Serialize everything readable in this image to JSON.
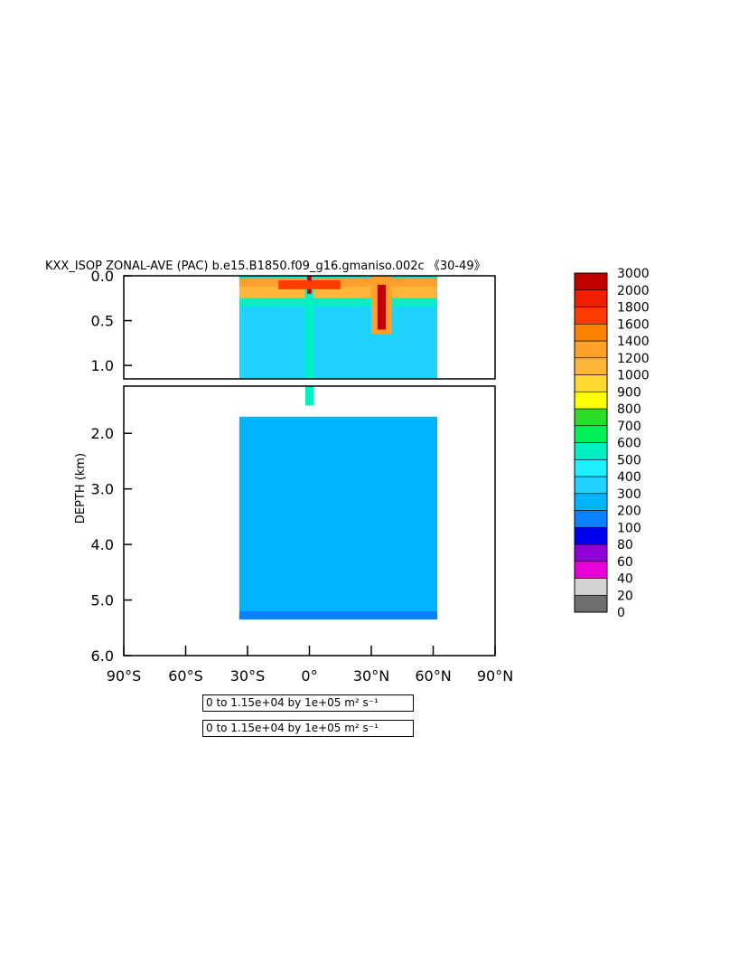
{
  "chart_data": {
    "type": "heatmap",
    "title": "KXX_ISOP ZONAL-AVE (PAC) b.e15.B1850.f09_g16.gmaniso.002c 《30-49》",
    "ylabel": "DEPTH (km)",
    "xlabel": "",
    "x_ticks": [
      "90°S",
      "60°S",
      "30°S",
      "0°",
      "30°N",
      "60°N",
      "90°N"
    ],
    "x_tick_values": [
      -90,
      -60,
      -30,
      0,
      30,
      60,
      90
    ],
    "xlim": [
      -90,
      90
    ],
    "upper_panel": {
      "ylim": [
        0.0,
        1.15
      ],
      "y_ticks": [
        "0.0",
        "0.5",
        "1.0"
      ],
      "y_tick_values": [
        0.0,
        0.5,
        1.0
      ]
    },
    "lower_panel": {
      "ylim": [
        1.15,
        6.0
      ],
      "y_ticks": [
        "2.0",
        "3.0",
        "4.0",
        "5.0",
        "6.0"
      ],
      "y_tick_values": [
        2.0,
        3.0,
        4.0,
        5.0,
        6.0
      ]
    },
    "domain": {
      "lat_range": [
        -34,
        62
      ],
      "max_depth_km": 5.35
    },
    "colorbar": {
      "levels": [
        "0",
        "20",
        "40",
        "60",
        "80",
        "100",
        "200",
        "300",
        "400",
        "500",
        "600",
        "700",
        "800",
        "900",
        "1000",
        "1200",
        "1400",
        "1600",
        "1800",
        "2000",
        "3000"
      ],
      "colors": [
        "#6e6e6e",
        "#d2d2d2",
        "#e600d7",
        "#9100d7",
        "#0000f0",
        "#0a82ff",
        "#00b4ff",
        "#20d2ff",
        "#1ef0ff",
        "#00f0c3",
        "#00f05a",
        "#2cdc28",
        "#ffff00",
        "#ffd732",
        "#ffb43c",
        "#ffa028",
        "#fa8200",
        "#ff3c00",
        "#f01e00",
        "#c30000"
      ]
    },
    "fields": [
      {
        "kind": "band",
        "lat": [
          -34,
          62
        ],
        "depth": [
          1.7,
          5.35
        ],
        "value": 250
      },
      {
        "kind": "band",
        "lat": [
          -34,
          62
        ],
        "depth": [
          0.3,
          1.15
        ],
        "value": 350
      },
      {
        "kind": "band",
        "lat": [
          -34,
          62
        ],
        "depth": [
          0.18,
          0.34
        ],
        "value": 550
      },
      {
        "kind": "band",
        "lat": [
          -34,
          62
        ],
        "depth": [
          0.08,
          0.25
        ],
        "value": 1050
      },
      {
        "kind": "band",
        "lat": [
          -34,
          62
        ],
        "depth": [
          0.02,
          0.12
        ],
        "value": 1300
      },
      {
        "kind": "band",
        "lat": [
          -34,
          62
        ],
        "depth": [
          0.0,
          0.03
        ],
        "value": 500
      },
      {
        "kind": "blob",
        "lat": [
          -34,
          62
        ],
        "depth": [
          5.2,
          5.35
        ],
        "value": 150
      },
      {
        "kind": "blob",
        "lat": [
          30,
          40
        ],
        "depth": [
          0.0,
          0.65
        ],
        "value": 1250
      },
      {
        "kind": "blob",
        "lat": [
          33,
          37
        ],
        "depth": [
          0.1,
          0.6
        ],
        "value": 2500
      },
      {
        "kind": "blob",
        "lat": [
          -2,
          2
        ],
        "depth": [
          0.0,
          1.5
        ],
        "value": 550
      },
      {
        "kind": "blob",
        "lat": [
          -1,
          1
        ],
        "depth": [
          0.0,
          0.2
        ],
        "value": 2500
      },
      {
        "kind": "blob",
        "lat": [
          -15,
          15
        ],
        "depth": [
          0.05,
          0.15
        ],
        "value": 1700
      }
    ]
  },
  "infobox": [
    "0 to 1.15e+04 by 1e+05 m² s⁻¹",
    "0 to 1.15e+04 by 1e+05 m² s⁻¹"
  ]
}
